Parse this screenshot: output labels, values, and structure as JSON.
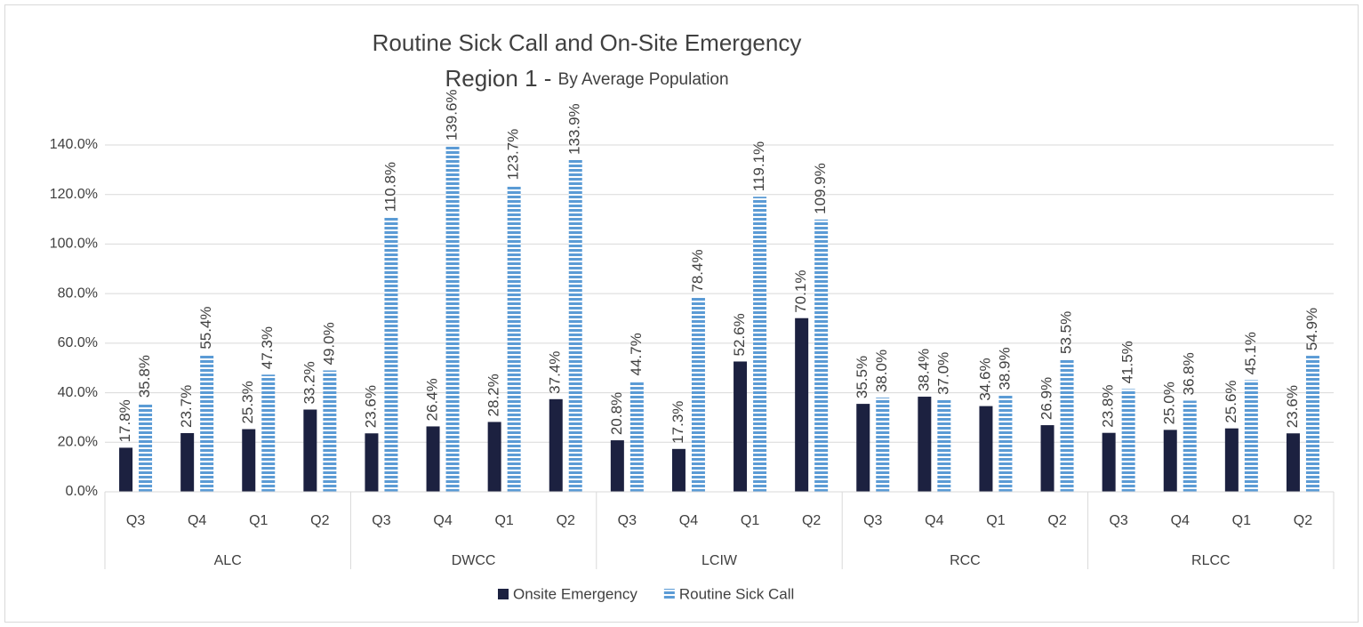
{
  "chart_data": {
    "type": "bar",
    "title": "Routine Sick Call and On-Site Emergency",
    "subtitle": {
      "main": "Region 1 - ",
      "detail": "By Average Population"
    },
    "groups": [
      {
        "name": "ALC",
        "categories": [
          "Q3",
          "Q4",
          "Q1",
          "Q2"
        ]
      },
      {
        "name": "DWCC",
        "categories": [
          "Q3",
          "Q4",
          "Q1",
          "Q2"
        ]
      },
      {
        "name": "LCIW",
        "categories": [
          "Q3",
          "Q4",
          "Q1",
          "Q2"
        ]
      },
      {
        "name": "RCC",
        "categories": [
          "Q3",
          "Q4",
          "Q1",
          "Q2"
        ]
      },
      {
        "name": "RLCC",
        "categories": [
          "Q3",
          "Q4",
          "Q1",
          "Q2"
        ]
      }
    ],
    "series": [
      {
        "name": "Onsite Emergency",
        "color": "#1c2140",
        "pattern": "solid",
        "values": [
          17.8,
          23.7,
          25.3,
          33.2,
          23.6,
          26.4,
          28.2,
          37.4,
          20.8,
          17.3,
          52.6,
          70.1,
          35.5,
          38.4,
          34.6,
          26.9,
          23.8,
          25.0,
          25.6,
          23.6
        ],
        "value_labels": [
          "17.8%",
          "23.7%",
          "25.3%",
          "33.2%",
          "23.6%",
          "26.4%",
          "28.2%",
          "37.4%",
          "20.8%",
          "17.3%",
          "52.6%",
          "70.1%",
          "35.5%",
          "38.4%",
          "34.6%",
          "26.9%",
          "23.8%",
          "25.0%",
          "25.6%",
          "23.6%"
        ]
      },
      {
        "name": "Routine Sick Call",
        "color": "#5b9bd5",
        "pattern": "horizontal-stripes",
        "values": [
          35.8,
          55.4,
          47.3,
          49.0,
          110.8,
          139.6,
          123.7,
          133.9,
          44.7,
          78.4,
          119.1,
          109.9,
          38.0,
          37.0,
          38.9,
          53.5,
          41.5,
          36.8,
          45.1,
          54.9
        ],
        "value_labels": [
          "35.8%",
          "55.4%",
          "47.3%",
          "49.0%",
          "110.8%",
          "139.6%",
          "123.7%",
          "133.9%",
          "44.7%",
          "78.4%",
          "119.1%",
          "109.9%",
          "38.0%",
          "37.0%",
          "38.9%",
          "53.5%",
          "41.5%",
          "36.8%",
          "45.1%",
          "54.9%"
        ]
      }
    ],
    "ylim": [
      0,
      140
    ],
    "yticks": [
      {
        "value": 0,
        "label": "0.0%"
      },
      {
        "value": 20,
        "label": "20.0%"
      },
      {
        "value": 40,
        "label": "40.0%"
      },
      {
        "value": 60,
        "label": "60.0%"
      },
      {
        "value": 80,
        "label": "80.0%"
      },
      {
        "value": 100,
        "label": "100.0%"
      },
      {
        "value": 120,
        "label": "120.0%"
      },
      {
        "value": 140,
        "label": "140.0%"
      }
    ],
    "grid": true,
    "legend": "bottom"
  }
}
